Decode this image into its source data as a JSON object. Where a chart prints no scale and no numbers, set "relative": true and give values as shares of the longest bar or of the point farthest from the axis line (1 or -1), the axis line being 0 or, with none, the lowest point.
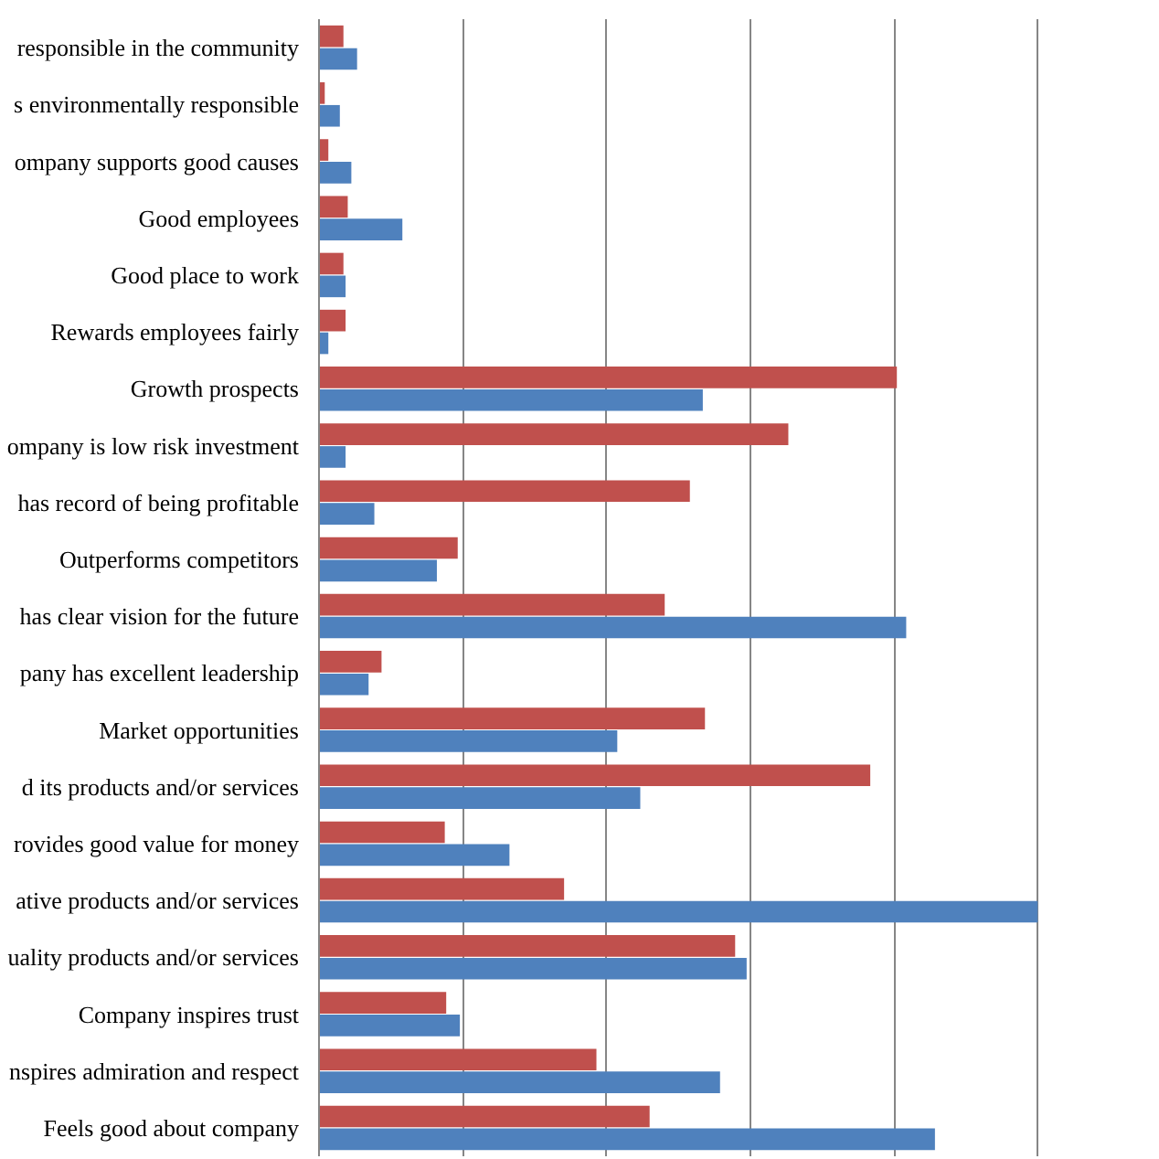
{
  "chart_data": {
    "type": "bar",
    "orientation": "horizontal",
    "relative": true,
    "grid": "x",
    "categories": [
      "responsible in the community",
      "s environmentally responsible",
      "ompany supports good causes",
      "Good employees",
      "Good place to work",
      "Rewards employees fairly",
      "Growth prospects",
      "ompany is low risk investment",
      "has record of being profitable",
      "Outperforms competitors",
      "has clear vision for the future",
      "pany has excellent leadership",
      "Market opportunities",
      "d its products and/or services",
      "rovides good value for money",
      "ative products and/or services",
      "uality products and/or services",
      "Company inspires trust",
      "nspires admiration and respect",
      "Feels good about company"
    ],
    "series": [
      {
        "color": "#c0504d",
        "values": [
          0.034,
          0.008,
          0.013,
          0.04,
          0.034,
          0.037,
          0.804,
          0.653,
          0.516,
          0.193,
          0.481,
          0.087,
          0.537,
          0.767,
          0.175,
          0.341,
          0.579,
          0.177,
          0.386,
          0.46
        ]
      },
      {
        "color": "#4f81bd",
        "values": [
          0.053,
          0.029,
          0.045,
          0.116,
          0.037,
          0.013,
          0.534,
          0.037,
          0.077,
          0.164,
          0.817,
          0.069,
          0.415,
          0.447,
          0.265,
          1,
          0.595,
          0.196,
          0.558,
          0.857
        ]
      }
    ]
  }
}
